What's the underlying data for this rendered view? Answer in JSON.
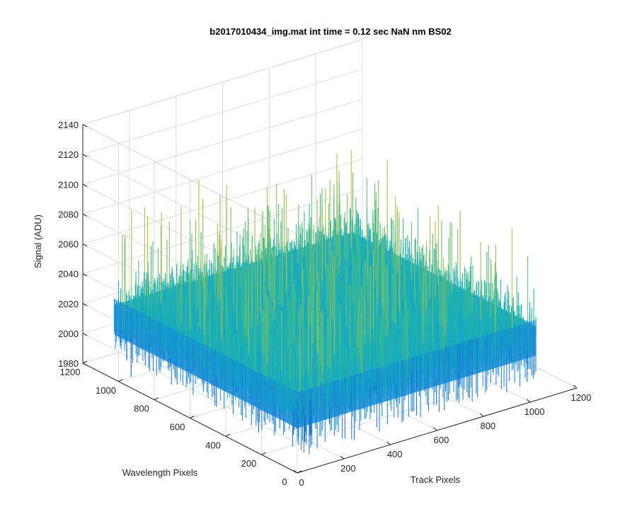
{
  "figure": {
    "background": "#ffffff",
    "grid_color": "#dcdcdc",
    "axis_color": "#262626"
  },
  "chart_data": {
    "type": "surface",
    "title": "b2017010434_img.mat int time = 0.12 sec  NaN nm BS02",
    "xlabel": "Track Pixels",
    "ylabel": "Wavelength Pixels",
    "zlabel": "Signal (ADU)",
    "xlim": [
      0,
      1200
    ],
    "ylim": [
      0,
      1200
    ],
    "zlim": [
      1980,
      2140
    ],
    "x_ticks": [
      0,
      200,
      400,
      600,
      800,
      1000,
      1200
    ],
    "y_ticks": [
      0,
      200,
      400,
      600,
      800,
      1000,
      1200
    ],
    "z_ticks": [
      1980,
      2000,
      2020,
      2040,
      2060,
      2080,
      2100,
      2120,
      2140
    ],
    "data_extent": {
      "x": [
        0,
        1024
      ],
      "y": [
        0,
        1024
      ]
    },
    "signal_baseline": 2030,
    "signal_range": [
      1985,
      2125
    ],
    "colormap": "parula",
    "colormap_stops": [
      "#1a56c8",
      "#1388d8",
      "#12a8c8",
      "#2bb89a",
      "#7fc166",
      "#c6c23c",
      "#f0d72e"
    ],
    "grid": true,
    "view": "3d-iso"
  }
}
